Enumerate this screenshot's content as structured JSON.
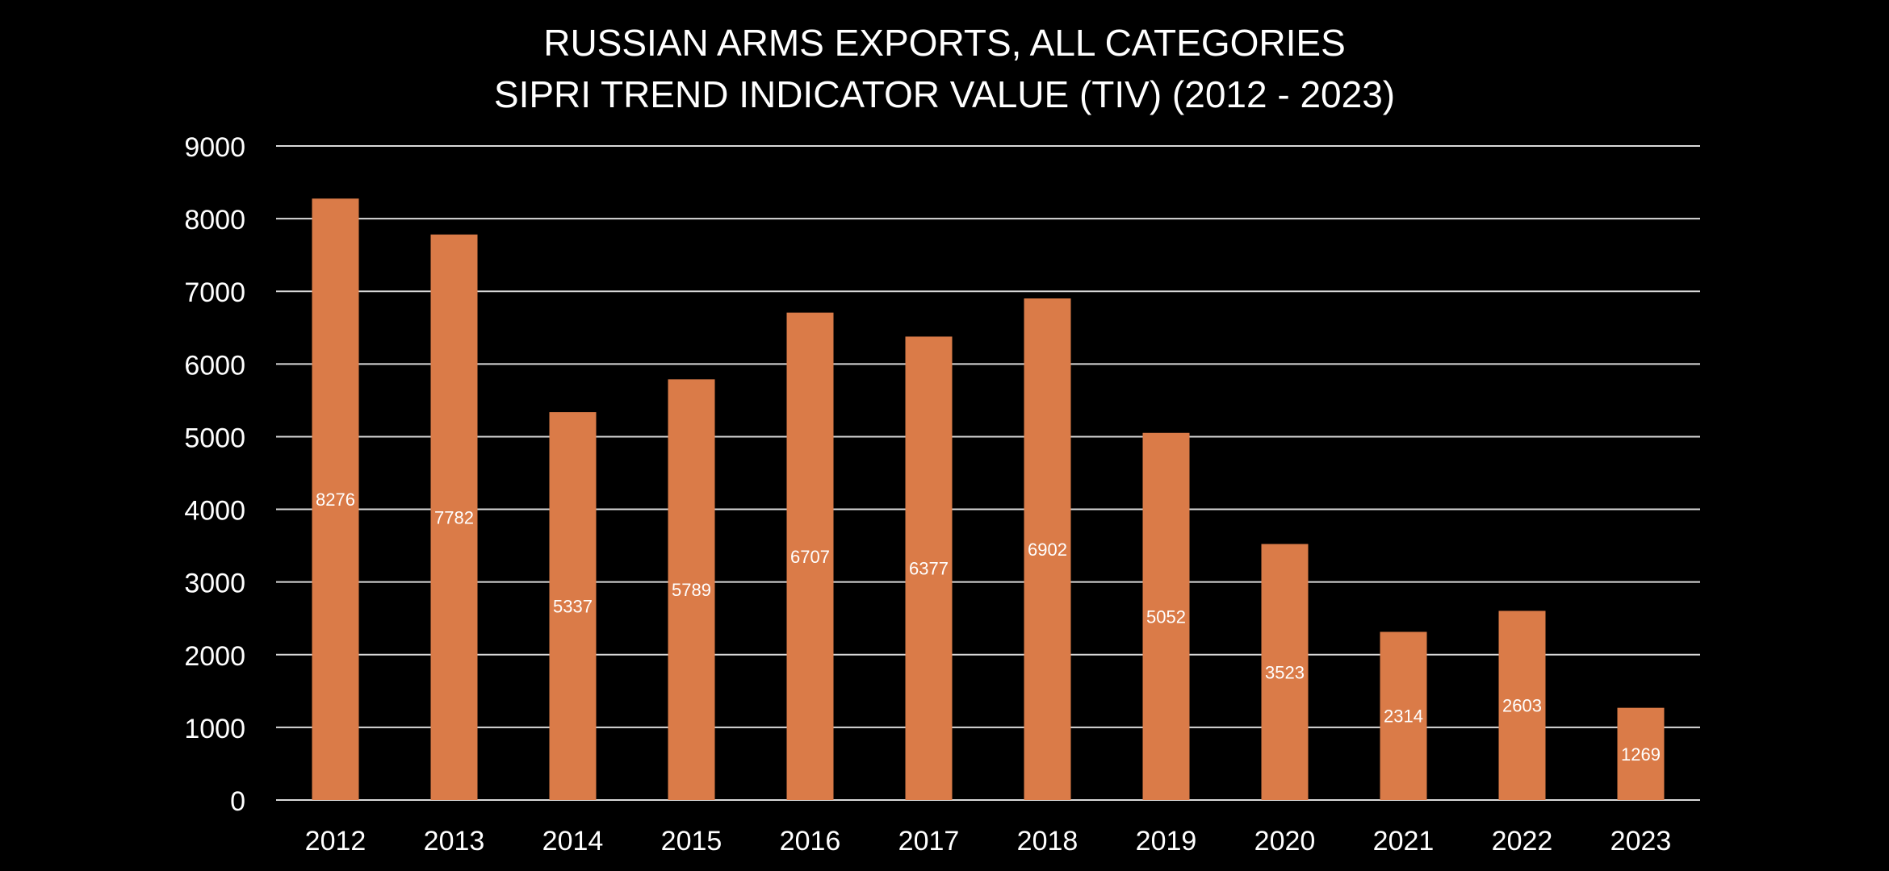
{
  "chart_data": {
    "type": "bar",
    "title": "RUSSIAN ARMS EXPORTS, ALL CATEGORIES",
    "subtitle": "SIPRI TREND INDICATOR VALUE (TIV) (2012 - 2023)",
    "xlabel": "",
    "ylabel": "",
    "categories": [
      "2012",
      "2013",
      "2014",
      "2015",
      "2016",
      "2017",
      "2018",
      "2019",
      "2020",
      "2021",
      "2022",
      "2023"
    ],
    "series": [
      {
        "values": [
          8276,
          7782,
          5337,
          5789,
          6707,
          6377,
          6902,
          5052,
          3523,
          2314,
          2603,
          1269
        ],
        "color": "#DA7B48"
      }
    ],
    "data_labels": [
      "8276",
      "7782",
      "5337",
      "5789",
      "6707",
      "6377",
      "6902",
      "5052",
      "3523",
      "2314",
      "2603",
      "1269"
    ],
    "y_ticks": [
      0,
      1000,
      2000,
      3000,
      4000,
      5000,
      6000,
      7000,
      8000,
      9000
    ],
    "ylim": [
      0,
      9000
    ],
    "grid": true,
    "legend": "none",
    "colors": {
      "background": "#000000",
      "bar": "#DA7B48",
      "grid": "#d9d9d9",
      "text": "#ffffff"
    }
  }
}
